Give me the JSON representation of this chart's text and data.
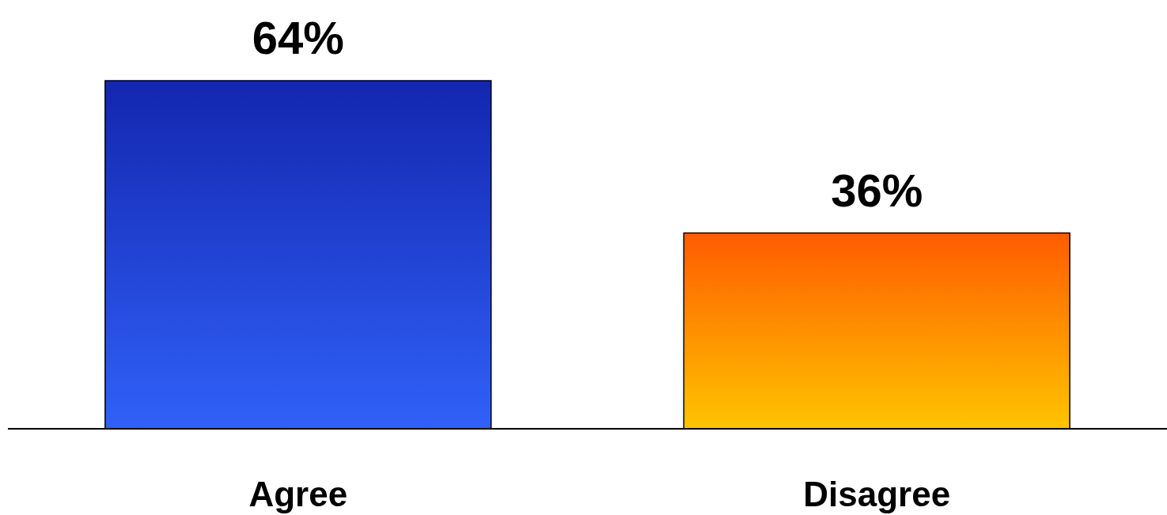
{
  "chart_data": {
    "type": "bar",
    "categories": [
      "Agree",
      "Disagree"
    ],
    "values": [
      64,
      36
    ],
    "colors": [
      "#2a55e8",
      "#ff9a00"
    ],
    "value_labels": [
      "64%",
      "36%"
    ]
  }
}
